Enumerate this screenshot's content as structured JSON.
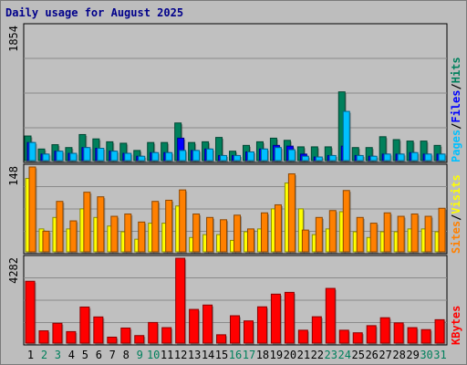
{
  "title": "Daily usage for August 2025",
  "colors": {
    "hits": "#00805c",
    "files": "#0000ff",
    "pages": "#00c0ff",
    "visits": "#ffff00",
    "sites": "#ff8000",
    "kbytes": "#ff0000",
    "weekday_label": "#000000",
    "weekend_label": "#00805c",
    "panel_bg": "#c0c0c0"
  },
  "chart_data": [
    {
      "type": "bar",
      "panel": "pages-files-hits",
      "legend": [
        "Pages",
        "/",
        "Files",
        "/",
        "Hits"
      ],
      "y_max_label": "1854",
      "ylim": [
        0,
        1854
      ],
      "categories": [
        "1",
        "2",
        "3",
        "4",
        "5",
        "6",
        "7",
        "8",
        "9",
        "10",
        "11",
        "12",
        "13",
        "14",
        "15",
        "16",
        "17",
        "18",
        "19",
        "20",
        "21",
        "22",
        "23",
        "24",
        "25",
        "26",
        "27",
        "28",
        "29",
        "30",
        "31"
      ],
      "series": [
        {
          "name": "Hits",
          "values": [
            340,
            160,
            220,
            180,
            360,
            300,
            260,
            240,
            140,
            250,
            250,
            520,
            250,
            260,
            320,
            130,
            210,
            260,
            310,
            280,
            190,
            190,
            190,
            950,
            180,
            180,
            330,
            290,
            270,
            270,
            210
          ]
        },
        {
          "name": "Files",
          "values": [
            250,
            90,
            130,
            100,
            180,
            170,
            130,
            100,
            60,
            110,
            110,
            310,
            140,
            160,
            70,
            70,
            120,
            160,
            210,
            200,
            90,
            50,
            70,
            200,
            70,
            60,
            90,
            90,
            110,
            90,
            90
          ]
        },
        {
          "name": "Pages",
          "values": [
            250,
            90,
            130,
            100,
            180,
            170,
            130,
            100,
            60,
            110,
            110,
            140,
            140,
            160,
            70,
            70,
            120,
            160,
            180,
            150,
            60,
            50,
            70,
            680,
            70,
            60,
            90,
            90,
            110,
            90,
            90
          ]
        }
      ]
    },
    {
      "type": "bar",
      "panel": "visits-sites",
      "legend": [
        "Sites",
        "/",
        "Visits"
      ],
      "y_max_label": "148",
      "ylim": [
        0,
        148
      ],
      "categories": [
        "1",
        "2",
        "3",
        "4",
        "5",
        "6",
        "7",
        "8",
        "9",
        "10",
        "11",
        "12",
        "13",
        "14",
        "15",
        "16",
        "17",
        "18",
        "19",
        "20",
        "21",
        "22",
        "23",
        "24",
        "25",
        "26",
        "27",
        "28",
        "29",
        "30",
        "31"
      ],
      "series": [
        {
          "name": "Visits",
          "values": [
            128,
            40,
            60,
            40,
            75,
            60,
            45,
            35,
            22,
            50,
            50,
            80,
            25,
            30,
            30,
            20,
            35,
            40,
            75,
            120,
            75,
            30,
            40,
            70,
            35,
            25,
            35,
            35,
            40,
            40,
            35
          ]
        },
        {
          "name": "Sites",
          "values": [
            148,
            36,
            88,
            54,
            104,
            96,
            62,
            66,
            52,
            88,
            90,
            108,
            66,
            60,
            56,
            64,
            40,
            68,
            82,
            136,
            38,
            60,
            72,
            107,
            60,
            50,
            68,
            62,
            66,
            62,
            76
          ]
        }
      ]
    },
    {
      "type": "bar",
      "panel": "kbytes",
      "legend": [
        "KBytes"
      ],
      "y_max_label": "4282",
      "ylim": [
        0,
        4282
      ],
      "categories": [
        "1",
        "2",
        "3",
        "4",
        "5",
        "6",
        "7",
        "8",
        "9",
        "10",
        "11",
        "12",
        "13",
        "14",
        "15",
        "16",
        "17",
        "18",
        "19",
        "20",
        "21",
        "22",
        "23",
        "24",
        "25",
        "26",
        "27",
        "28",
        "29",
        "30",
        "31"
      ],
      "series": [
        {
          "name": "KBytes",
          "values": [
            3120,
            620,
            1000,
            580,
            1820,
            1320,
            300,
            760,
            380,
            1040,
            780,
            4282,
            1700,
            1920,
            420,
            1380,
            1120,
            1830,
            2470,
            2560,
            650,
            1330,
            2760,
            650,
            520,
            880,
            1280,
            1020,
            780,
            680,
            1180
          ]
        }
      ]
    }
  ],
  "weekend_days": [
    2,
    3,
    9,
    10,
    16,
    17,
    23,
    24,
    30,
    31
  ]
}
